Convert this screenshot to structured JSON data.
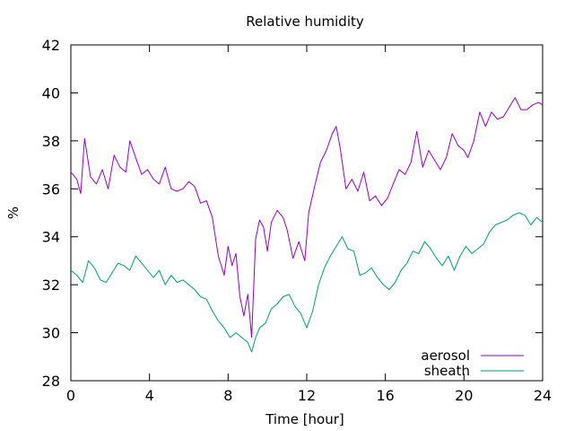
{
  "chart_data": {
    "type": "line",
    "title": "Relative humidity",
    "xlabel": "Time [hour]",
    "ylabel": "%",
    "xlim": [
      0,
      24
    ],
    "ylim": [
      28,
      42
    ],
    "xticks": [
      0,
      4,
      8,
      12,
      16,
      20,
      24
    ],
    "yticks": [
      28,
      30,
      32,
      34,
      36,
      38,
      40,
      42
    ],
    "grid": false,
    "legend_position": "bottom-right",
    "series": [
      {
        "name": "aerosol",
        "color": "#9400d3",
        "x": [
          0,
          0.3,
          0.5,
          0.7,
          1.0,
          1.3,
          1.6,
          1.9,
          2.2,
          2.5,
          2.8,
          3.0,
          3.3,
          3.6,
          3.9,
          4.2,
          4.5,
          4.8,
          5.1,
          5.4,
          5.7,
          6.0,
          6.3,
          6.6,
          6.9,
          7.2,
          7.5,
          7.8,
          8.0,
          8.2,
          8.4,
          8.6,
          8.8,
          9.0,
          9.2,
          9.4,
          9.6,
          9.8,
          10.0,
          10.2,
          10.5,
          10.8,
          11.0,
          11.3,
          11.6,
          11.9,
          12.1,
          12.4,
          12.7,
          13.0,
          13.3,
          13.5,
          13.7,
          14.0,
          14.3,
          14.6,
          14.9,
          15.2,
          15.5,
          15.8,
          16.1,
          16.4,
          16.7,
          17.0,
          17.3,
          17.6,
          17.9,
          18.2,
          18.5,
          18.8,
          19.1,
          19.4,
          19.7,
          20.0,
          20.2,
          20.5,
          20.8,
          21.1,
          21.4,
          21.7,
          22.0,
          22.3,
          22.6,
          22.9,
          23.2,
          23.5,
          23.8,
          24.0
        ],
        "y": [
          36.7,
          36.4,
          35.8,
          38.1,
          36.5,
          36.2,
          36.8,
          36.0,
          37.4,
          36.9,
          36.7,
          38.0,
          37.3,
          36.6,
          36.8,
          36.4,
          36.2,
          36.9,
          36.0,
          35.9,
          36.0,
          36.3,
          36.1,
          35.4,
          35.5,
          34.8,
          33.2,
          32.4,
          33.6,
          32.8,
          33.3,
          31.5,
          30.7,
          31.6,
          29.8,
          33.9,
          34.7,
          34.4,
          33.4,
          34.6,
          35.1,
          34.8,
          34.3,
          33.1,
          33.8,
          33.0,
          35.0,
          36.1,
          37.1,
          37.6,
          38.3,
          38.6,
          37.7,
          36.0,
          36.4,
          35.9,
          36.7,
          35.5,
          35.7,
          35.3,
          35.6,
          36.2,
          36.8,
          36.6,
          37.1,
          38.4,
          36.9,
          37.6,
          37.2,
          36.8,
          37.3,
          38.3,
          37.8,
          37.6,
          37.3,
          38.0,
          39.2,
          38.6,
          39.2,
          38.9,
          39.0,
          39.4,
          39.8,
          39.3,
          39.3,
          39.5,
          39.6,
          39.5
        ]
      },
      {
        "name": "sheath",
        "color": "#009e73",
        "x": [
          0,
          0.3,
          0.6,
          0.9,
          1.2,
          1.5,
          1.8,
          2.1,
          2.4,
          2.7,
          3.0,
          3.3,
          3.6,
          3.9,
          4.2,
          4.5,
          4.8,
          5.1,
          5.4,
          5.7,
          6.0,
          6.3,
          6.6,
          6.9,
          7.2,
          7.5,
          7.8,
          8.1,
          8.4,
          8.7,
          9.0,
          9.2,
          9.4,
          9.6,
          9.9,
          10.2,
          10.5,
          10.8,
          11.1,
          11.4,
          11.7,
          12.0,
          12.3,
          12.6,
          12.9,
          13.2,
          13.5,
          13.8,
          14.1,
          14.4,
          14.7,
          15.0,
          15.3,
          15.6,
          15.9,
          16.2,
          16.5,
          16.8,
          17.1,
          17.4,
          17.7,
          18.0,
          18.3,
          18.6,
          18.9,
          19.2,
          19.5,
          19.8,
          20.1,
          20.4,
          20.7,
          21.0,
          21.3,
          21.6,
          21.9,
          22.2,
          22.5,
          22.8,
          23.1,
          23.4,
          23.7,
          24.0
        ],
        "y": [
          32.6,
          32.4,
          32.1,
          33.0,
          32.7,
          32.2,
          32.1,
          32.5,
          32.9,
          32.8,
          32.6,
          33.2,
          32.9,
          32.6,
          32.3,
          32.6,
          32.0,
          32.4,
          32.1,
          32.2,
          32.0,
          31.8,
          31.5,
          31.4,
          30.9,
          30.5,
          30.2,
          29.8,
          30.0,
          29.8,
          29.6,
          29.2,
          29.8,
          30.2,
          30.4,
          31.0,
          31.2,
          31.5,
          31.6,
          31.1,
          30.8,
          30.2,
          30.9,
          32.0,
          32.7,
          33.2,
          33.6,
          34.0,
          33.5,
          33.4,
          32.4,
          32.5,
          32.7,
          32.3,
          32.0,
          31.8,
          32.1,
          32.6,
          32.9,
          33.4,
          33.3,
          33.8,
          33.5,
          33.1,
          32.8,
          33.2,
          32.6,
          33.2,
          33.6,
          33.3,
          33.5,
          33.7,
          34.2,
          34.5,
          34.6,
          34.7,
          34.9,
          35.0,
          34.9,
          34.5,
          34.8,
          34.6
        ]
      }
    ]
  }
}
